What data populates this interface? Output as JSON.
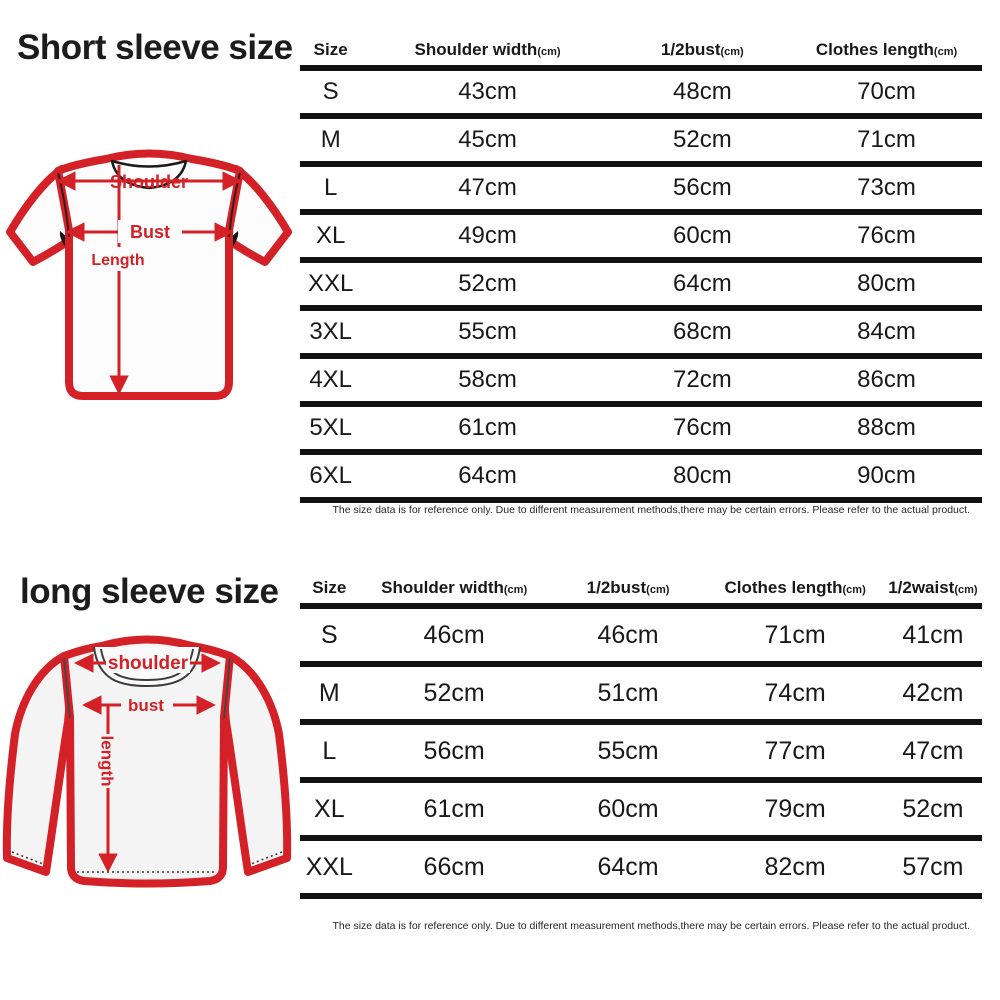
{
  "colors": {
    "accent_red": "#d42127",
    "ink": "#121212",
    "shirt_fill": "#fcfcfc",
    "long_shirt_fill": "#f4f4f4"
  },
  "short_sleeve": {
    "title": "Short sleeve size",
    "diagram": {
      "labels": {
        "shoulder": "Shoulder",
        "bust": "Bust",
        "length": "Length"
      }
    },
    "table": {
      "columns": [
        {
          "label": "Size",
          "unit": ""
        },
        {
          "label": "Shoulder width",
          "unit": "(cm)"
        },
        {
          "label": "1/2bust",
          "unit": "(cm)"
        },
        {
          "label": "Clothes length",
          "unit": "(cm)"
        }
      ],
      "rows": [
        [
          "S",
          "43cm",
          "48cm",
          "70cm"
        ],
        [
          "M",
          "45cm",
          "52cm",
          "71cm"
        ],
        [
          "L",
          "47cm",
          "56cm",
          "73cm"
        ],
        [
          "XL",
          "49cm",
          "60cm",
          "76cm"
        ],
        [
          "XXL",
          "52cm",
          "64cm",
          "80cm"
        ],
        [
          "3XL",
          "55cm",
          "68cm",
          "84cm"
        ],
        [
          "4XL",
          "58cm",
          "72cm",
          "86cm"
        ],
        [
          "5XL",
          "61cm",
          "76cm",
          "88cm"
        ],
        [
          "6XL",
          "64cm",
          "80cm",
          "90cm"
        ]
      ]
    },
    "footnote": "The size data is for reference only. Due to different measurement methods,there may be certain errors. Please refer to the actual product."
  },
  "long_sleeve": {
    "title": "long sleeve size",
    "diagram": {
      "labels": {
        "shoulder": "shoulder",
        "bust": "bust",
        "length": "length"
      }
    },
    "table": {
      "columns": [
        {
          "label": "Size",
          "unit": ""
        },
        {
          "label": "Shoulder width",
          "unit": "(cm)"
        },
        {
          "label": "1/2bust",
          "unit": "(cm)"
        },
        {
          "label": "Clothes length",
          "unit": "(cm)"
        },
        {
          "label": "1/2waist",
          "unit": "(cm)"
        }
      ],
      "rows": [
        [
          "S",
          "46cm",
          "46cm",
          "71cm",
          "41cm"
        ],
        [
          "M",
          "52cm",
          "51cm",
          "74cm",
          "42cm"
        ],
        [
          "L",
          "56cm",
          "55cm",
          "77cm",
          "47cm"
        ],
        [
          "XL",
          "61cm",
          "60cm",
          "79cm",
          "52cm"
        ],
        [
          "XXL",
          "66cm",
          "64cm",
          "82cm",
          "57cm"
        ]
      ]
    },
    "footnote": "The size data is for reference only. Due to different measurement methods,there may be certain errors. Please refer to the actual product."
  }
}
